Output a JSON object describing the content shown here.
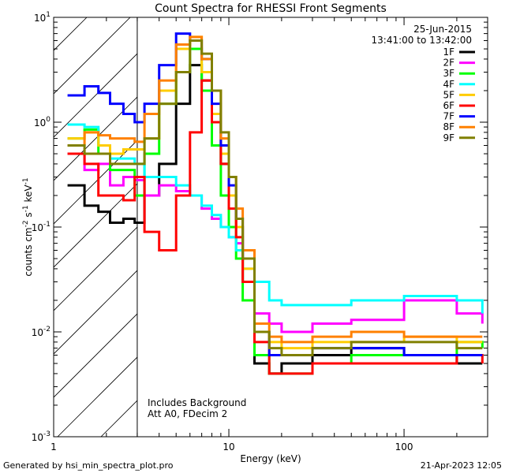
{
  "chart_data": {
    "type": "line",
    "title": "Count Spectra for RHESSI Front Segments",
    "xlabel": "Energy (keV)",
    "ylabel_parts": [
      "counts cm",
      "-2",
      " s",
      "-1",
      " keV",
      "-1"
    ],
    "x_scale": "log",
    "y_scale": "log",
    "xlim": [
      1,
      300
    ],
    "ylim": [
      0.001,
      10
    ],
    "x_ticks": [
      {
        "value": 1,
        "label": "1"
      },
      {
        "value": 10,
        "label": "10"
      },
      {
        "value": 100,
        "label": "100"
      }
    ],
    "y_ticks": [
      {
        "value": 10,
        "base": "10",
        "exp": "1"
      },
      {
        "value": 1,
        "base": "10",
        "exp": "0"
      },
      {
        "value": 0.1,
        "base": "10",
        "exp": "-1"
      },
      {
        "value": 0.01,
        "base": "10",
        "exp": "-2"
      },
      {
        "value": 0.001,
        "base": "10",
        "exp": "-3"
      }
    ],
    "date": "25-Jun-2015",
    "time_range": "13:41:00 to 13:42:00",
    "annotations": [
      "Includes Background",
      "Att A0, FDecim 2"
    ],
    "hatched_region": {
      "x_from": 1,
      "x_to": 3
    },
    "legend_position": "top-right",
    "series": [
      {
        "name": "1F",
        "color": "#000000",
        "points": [
          [
            1.2,
            0.25
          ],
          [
            1.5,
            0.16
          ],
          [
            1.8,
            0.14
          ],
          [
            2.1,
            0.11
          ],
          [
            2.5,
            0.12
          ],
          [
            2.9,
            0.11
          ],
          [
            3.3,
            0.2
          ],
          [
            4,
            0.4
          ],
          [
            5,
            1.5
          ],
          [
            6,
            3.5
          ],
          [
            7,
            2.5
          ],
          [
            8,
            1.0
          ],
          [
            9,
            0.4
          ],
          [
            10,
            0.2
          ],
          [
            11,
            0.1
          ],
          [
            12,
            0.03
          ],
          [
            14,
            0.005
          ],
          [
            17,
            0.004
          ],
          [
            20,
            0.005
          ],
          [
            30,
            0.006
          ],
          [
            50,
            0.007
          ],
          [
            100,
            0.006
          ],
          [
            200,
            0.005
          ],
          [
            280,
            0.005
          ]
        ]
      },
      {
        "name": "2F",
        "color": "#ff00ff",
        "points": [
          [
            1.2,
            0.5
          ],
          [
            1.5,
            0.35
          ],
          [
            1.8,
            0.4
          ],
          [
            2.1,
            0.25
          ],
          [
            2.5,
            0.3
          ],
          [
            2.9,
            0.28
          ],
          [
            3.3,
            0.2
          ],
          [
            4,
            0.25
          ],
          [
            5,
            0.22
          ],
          [
            6,
            0.2
          ],
          [
            7,
            0.15
          ],
          [
            8,
            0.12
          ],
          [
            9,
            0.1
          ],
          [
            10,
            0.08
          ],
          [
            11,
            0.07
          ],
          [
            12,
            0.05
          ],
          [
            14,
            0.015
          ],
          [
            17,
            0.012
          ],
          [
            20,
            0.01
          ],
          [
            30,
            0.012
          ],
          [
            50,
            0.013
          ],
          [
            100,
            0.02
          ],
          [
            200,
            0.015
          ],
          [
            280,
            0.012
          ]
        ]
      },
      {
        "name": "3F",
        "color": "#00ff00",
        "points": [
          [
            1.2,
            0.7
          ],
          [
            1.5,
            0.85
          ],
          [
            1.8,
            0.5
          ],
          [
            2.1,
            0.35
          ],
          [
            2.5,
            0.35
          ],
          [
            2.9,
            0.2
          ],
          [
            3.3,
            0.5
          ],
          [
            4,
            1.5
          ],
          [
            5,
            3.0
          ],
          [
            6,
            5.0
          ],
          [
            7,
            2.0
          ],
          [
            8,
            0.6
          ],
          [
            9,
            0.2
          ],
          [
            10,
            0.1
          ],
          [
            11,
            0.05
          ],
          [
            12,
            0.02
          ],
          [
            14,
            0.006
          ],
          [
            17,
            0.004
          ],
          [
            20,
            0.004
          ],
          [
            30,
            0.005
          ],
          [
            50,
            0.006
          ],
          [
            100,
            0.006
          ],
          [
            200,
            0.008
          ],
          [
            280,
            0.007
          ]
        ]
      },
      {
        "name": "4F",
        "color": "#00ffff",
        "points": [
          [
            1.2,
            0.95
          ],
          [
            1.5,
            0.9
          ],
          [
            1.8,
            0.6
          ],
          [
            2.1,
            0.45
          ],
          [
            2.5,
            0.45
          ],
          [
            2.9,
            0.4
          ],
          [
            3.3,
            0.3
          ],
          [
            4,
            0.3
          ],
          [
            5,
            0.25
          ],
          [
            6,
            0.2
          ],
          [
            7,
            0.16
          ],
          [
            8,
            0.13
          ],
          [
            9,
            0.1
          ],
          [
            10,
            0.08
          ],
          [
            11,
            0.06
          ],
          [
            12,
            0.04
          ],
          [
            14,
            0.03
          ],
          [
            17,
            0.02
          ],
          [
            20,
            0.018
          ],
          [
            30,
            0.018
          ],
          [
            50,
            0.02
          ],
          [
            100,
            0.022
          ],
          [
            200,
            0.02
          ],
          [
            280,
            0.015
          ]
        ]
      },
      {
        "name": "5F",
        "color": "#ffcc00",
        "points": [
          [
            1.2,
            0.7
          ],
          [
            1.5,
            0.8
          ],
          [
            1.8,
            0.6
          ],
          [
            2.1,
            0.5
          ],
          [
            2.5,
            0.55
          ],
          [
            2.9,
            0.55
          ],
          [
            3.3,
            0.7
          ],
          [
            4,
            2.0
          ],
          [
            5,
            5.0
          ],
          [
            6,
            6.5
          ],
          [
            7,
            3.0
          ],
          [
            8,
            1.2
          ],
          [
            9,
            0.5
          ],
          [
            10,
            0.2
          ],
          [
            11,
            0.1
          ],
          [
            12,
            0.04
          ],
          [
            14,
            0.01
          ],
          [
            17,
            0.008
          ],
          [
            20,
            0.007
          ],
          [
            30,
            0.008
          ],
          [
            50,
            0.008
          ],
          [
            100,
            0.009
          ],
          [
            200,
            0.008
          ],
          [
            280,
            0.008
          ]
        ]
      },
      {
        "name": "6F",
        "color": "#ff0000",
        "points": [
          [
            1.2,
            0.5
          ],
          [
            1.5,
            0.4
          ],
          [
            1.8,
            0.2
          ],
          [
            2.1,
            0.2
          ],
          [
            2.5,
            0.18
          ],
          [
            2.9,
            0.3
          ],
          [
            3.3,
            0.09
          ],
          [
            4,
            0.06
          ],
          [
            5,
            0.2
          ],
          [
            6,
            0.8
          ],
          [
            7,
            2.5
          ],
          [
            8,
            1.0
          ],
          [
            9,
            0.4
          ],
          [
            10,
            0.15
          ],
          [
            11,
            0.08
          ],
          [
            12,
            0.03
          ],
          [
            14,
            0.008
          ],
          [
            17,
            0.004
          ],
          [
            20,
            0.004
          ],
          [
            30,
            0.005
          ],
          [
            50,
            0.005
          ],
          [
            100,
            0.005
          ],
          [
            200,
            0.006
          ],
          [
            280,
            0.005
          ]
        ]
      },
      {
        "name": "7F",
        "color": "#0000ff",
        "points": [
          [
            1.2,
            1.8
          ],
          [
            1.5,
            2.2
          ],
          [
            1.8,
            1.9
          ],
          [
            2.1,
            1.5
          ],
          [
            2.5,
            1.2
          ],
          [
            2.9,
            1.0
          ],
          [
            3.3,
            1.5
          ],
          [
            4,
            3.5
          ],
          [
            5,
            7.0
          ],
          [
            6,
            6.0
          ],
          [
            7,
            4.0
          ],
          [
            8,
            1.5
          ],
          [
            9,
            0.6
          ],
          [
            10,
            0.25
          ],
          [
            11,
            0.12
          ],
          [
            12,
            0.05
          ],
          [
            14,
            0.01
          ],
          [
            17,
            0.006
          ],
          [
            20,
            0.006
          ],
          [
            30,
            0.007
          ],
          [
            50,
            0.007
          ],
          [
            100,
            0.006
          ],
          [
            200,
            0.006
          ],
          [
            280,
            0.006
          ]
        ]
      },
      {
        "name": "8F",
        "color": "#ff8000",
        "points": [
          [
            1.2,
            0.6
          ],
          [
            1.5,
            0.8
          ],
          [
            1.8,
            0.75
          ],
          [
            2.1,
            0.7
          ],
          [
            2.5,
            0.7
          ],
          [
            2.9,
            0.65
          ],
          [
            3.3,
            1.2
          ],
          [
            4,
            2.5
          ],
          [
            5,
            5.5
          ],
          [
            6,
            6.5
          ],
          [
            7,
            4.0
          ],
          [
            8,
            2.0
          ],
          [
            9,
            0.7
          ],
          [
            10,
            0.3
          ],
          [
            11,
            0.15
          ],
          [
            12,
            0.06
          ],
          [
            14,
            0.012
          ],
          [
            17,
            0.009
          ],
          [
            20,
            0.008
          ],
          [
            30,
            0.009
          ],
          [
            50,
            0.01
          ],
          [
            100,
            0.009
          ],
          [
            200,
            0.009
          ],
          [
            280,
            0.009
          ]
        ]
      },
      {
        "name": "9F",
        "color": "#808000",
        "points": [
          [
            1.2,
            0.6
          ],
          [
            1.5,
            0.5
          ],
          [
            1.8,
            0.5
          ],
          [
            2.1,
            0.4
          ],
          [
            2.5,
            0.4
          ],
          [
            2.9,
            0.4
          ],
          [
            3.3,
            0.7
          ],
          [
            4,
            1.5
          ],
          [
            5,
            3.0
          ],
          [
            6,
            6.0
          ],
          [
            7,
            4.5
          ],
          [
            8,
            2.0
          ],
          [
            9,
            0.8
          ],
          [
            10,
            0.3
          ],
          [
            11,
            0.12
          ],
          [
            12,
            0.05
          ],
          [
            14,
            0.01
          ],
          [
            17,
            0.007
          ],
          [
            20,
            0.006
          ],
          [
            30,
            0.007
          ],
          [
            50,
            0.008
          ],
          [
            100,
            0.008
          ],
          [
            200,
            0.007
          ],
          [
            280,
            0.007
          ]
        ]
      }
    ]
  },
  "footer": {
    "left": "Generated by hsi_min_spectra_plot.pro",
    "right": "21-Apr-2023 12:05"
  }
}
